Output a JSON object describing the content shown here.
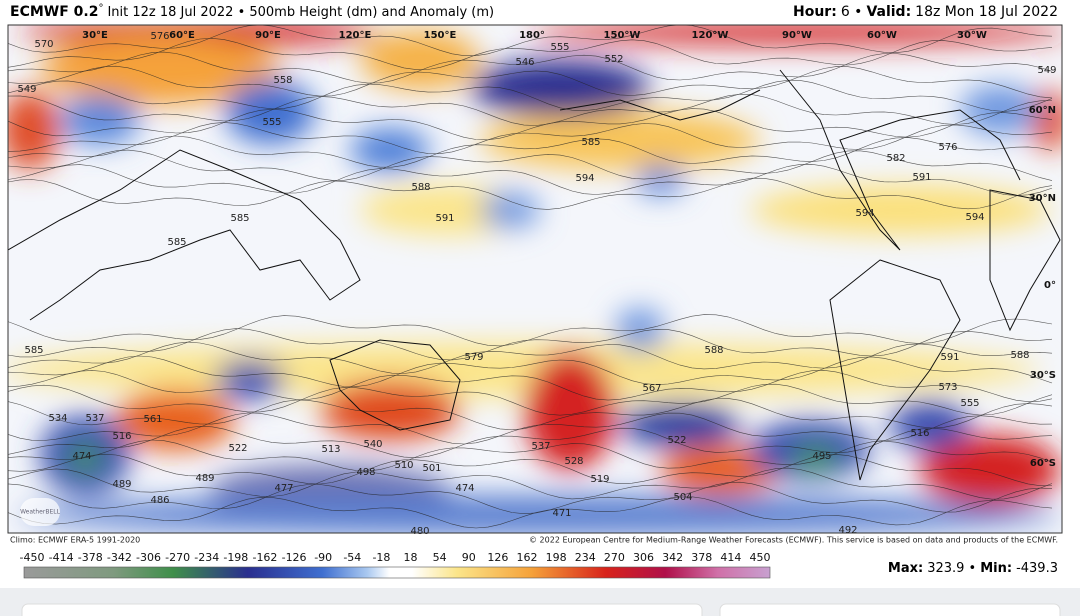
{
  "header": {
    "model": "ECMWF 0.2",
    "degree": "°",
    "init": "Init 12z 18 Jul 2022 • 500mb Height (dm) and Anomaly (m)",
    "hour_label": "Hour:",
    "hour": "6 •",
    "valid_label": "Valid:",
    "valid": "18z Mon 18 Jul 2022"
  },
  "map": {
    "lon_labels": [
      "30°E",
      "60°E",
      "90°E",
      "120°E",
      "150°E",
      "180°",
      "150°W",
      "120°W",
      "90°W",
      "60°W",
      "30°W"
    ],
    "lat_labels": [
      "60°N",
      "30°N",
      "0°",
      "30°S",
      "60°S"
    ],
    "contour_labels": [
      "570",
      "576",
      "558",
      "555",
      "549",
      "549",
      "546",
      "552",
      "555",
      "585",
      "594",
      "588",
      "591",
      "585",
      "585",
      "594",
      "594",
      "591",
      "576",
      "582",
      "579",
      "588",
      "591",
      "588",
      "573",
      "555",
      "567",
      "561",
      "540",
      "522",
      "513",
      "498",
      "501",
      "510",
      "474",
      "489",
      "486",
      "489",
      "477",
      "474",
      "519",
      "528",
      "537",
      "522",
      "495",
      "492",
      "504",
      "516",
      "534",
      "516",
      "537",
      "480",
      "471",
      "585"
    ],
    "watermark": "WeatherBELL"
  },
  "footer": {
    "climo": "Climo: ECMWF ERA-5 1991-2020",
    "copyright": "© 2022 European Centre for Medium-Range Weather Forecasts (ECMWF). This service is based on data and products of the ECMWF.",
    "colorbar_ticks": [
      "-450",
      "-414",
      "-378",
      "-342",
      "-306",
      "-270",
      "-234",
      "-198",
      "-162",
      "-126",
      "-90",
      "-54",
      "-18",
      "18",
      "54",
      "90",
      "126",
      "162",
      "198",
      "234",
      "270",
      "306",
      "342",
      "378",
      "414",
      "450"
    ],
    "max_label": "Max:",
    "max": "323.9 •",
    "min_label": "Min:",
    "min": "-439.3"
  }
}
